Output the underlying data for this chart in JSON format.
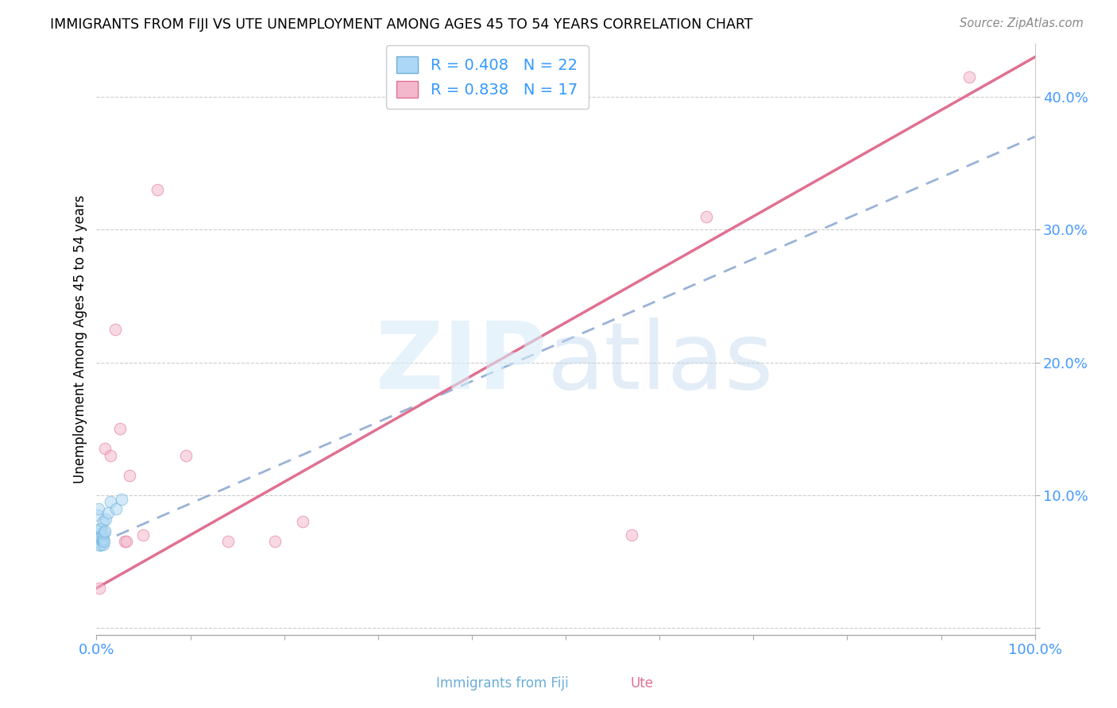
{
  "title": "IMMIGRANTS FROM FIJI VS UTE UNEMPLOYMENT AMONG AGES 45 TO 54 YEARS CORRELATION CHART",
  "source": "Source: ZipAtlas.com",
  "ylabel": "Unemployment Among Ages 45 to 54 years",
  "xlim": [
    0,
    1.0
  ],
  "ylim": [
    -0.005,
    0.44
  ],
  "x_ticks": [
    0.0,
    0.1,
    0.2,
    0.3,
    0.4,
    0.5,
    0.6,
    0.7,
    0.8,
    0.9,
    1.0
  ],
  "x_tick_labels": [
    "0.0%",
    "",
    "",
    "",
    "",
    "",
    "",
    "",
    "",
    "",
    "100.0%"
  ],
  "y_ticks": [
    0.0,
    0.1,
    0.2,
    0.3,
    0.4
  ],
  "y_tick_labels": [
    "",
    "10.0%",
    "20.0%",
    "30.0%",
    "40.0%"
  ],
  "fiji_color": "#add8f5",
  "fiji_edge_color": "#6baed6",
  "ute_color": "#f4b8cc",
  "ute_edge_color": "#e07090",
  "fiji_R": 0.408,
  "fiji_N": 22,
  "ute_R": 0.838,
  "ute_N": 17,
  "fiji_line_color": "#7799cc",
  "ute_line_color": "#e07090",
  "legend_color": "#3399ff",
  "fiji_scatter_x": [
    0.001,
    0.002,
    0.003,
    0.003,
    0.004,
    0.004,
    0.005,
    0.005,
    0.005,
    0.006,
    0.006,
    0.007,
    0.007,
    0.007,
    0.008,
    0.008,
    0.009,
    0.01,
    0.012,
    0.015,
    0.021,
    0.027
  ],
  "fiji_scatter_y": [
    0.085,
    0.09,
    0.062,
    0.068,
    0.071,
    0.075,
    0.063,
    0.069,
    0.075,
    0.065,
    0.07,
    0.063,
    0.067,
    0.08,
    0.065,
    0.072,
    0.073,
    0.082,
    0.087,
    0.095,
    0.09,
    0.097
  ],
  "ute_scatter_x": [
    0.003,
    0.009,
    0.015,
    0.02,
    0.025,
    0.03,
    0.032,
    0.035,
    0.05,
    0.065,
    0.095,
    0.14,
    0.19,
    0.22,
    0.57,
    0.65,
    0.93
  ],
  "ute_scatter_y": [
    0.03,
    0.135,
    0.13,
    0.225,
    0.15,
    0.065,
    0.065,
    0.115,
    0.07,
    0.33,
    0.13,
    0.065,
    0.065,
    0.08,
    0.07,
    0.31,
    0.415
  ],
  "fiji_line_x0": 0.0,
  "fiji_line_x1": 1.0,
  "fiji_line_y0": 0.063,
  "fiji_line_y1": 0.37,
  "ute_line_x0": 0.0,
  "ute_line_x1": 1.0,
  "ute_line_y0": 0.03,
  "ute_line_y1": 0.43,
  "marker_size": 110,
  "alpha_scatter": 0.55,
  "grid_color": "#cccccc",
  "background_color": "#ffffff",
  "tick_color": "#4499ff"
}
